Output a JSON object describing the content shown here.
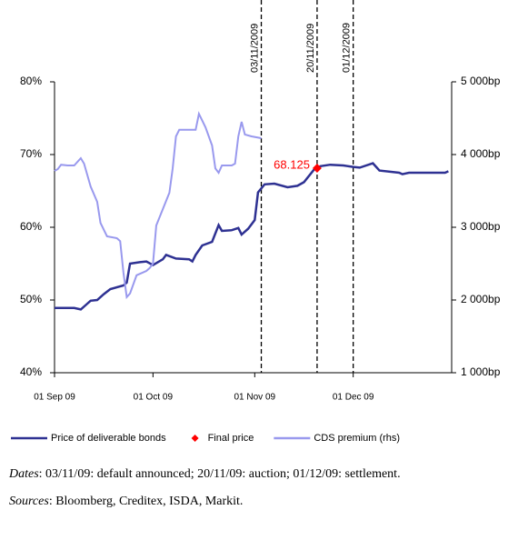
{
  "chart_data": {
    "type": "line",
    "xlim": [
      "2009-09-01",
      "2009-12-31"
    ],
    "xticks": [
      {
        "value": "2009-09-01",
        "label": "01 Sep 09"
      },
      {
        "value": "2009-10-01",
        "label": "01 Oct 09"
      },
      {
        "value": "2009-11-01",
        "label": "01 Nov 09"
      },
      {
        "value": "2009-12-01",
        "label": "01 Dec 09"
      }
    ],
    "ylim": [
      40,
      80
    ],
    "yticks": [
      {
        "value": 40,
        "label": "40%"
      },
      {
        "value": 50,
        "label": "50%"
      },
      {
        "value": 60,
        "label": "60%"
      },
      {
        "value": 70,
        "label": "70%"
      },
      {
        "value": 80,
        "label": "80%"
      }
    ],
    "y2lim": [
      1000,
      5000
    ],
    "y2ticks": [
      {
        "value": 1000,
        "label": "1 000bp"
      },
      {
        "value": 2000,
        "label": "2 000bp"
      },
      {
        "value": 3000,
        "label": "3 000bp"
      },
      {
        "value": 4000,
        "label": "4 000bp"
      },
      {
        "value": 5000,
        "label": "5 000bp"
      }
    ],
    "series": [
      {
        "name": "Price of deliverable bonds",
        "color": "#2e3192",
        "style": "line",
        "x": [
          "2009-09-01",
          "2009-09-07",
          "2009-09-09",
          "2009-09-11",
          "2009-09-12",
          "2009-09-14",
          "2009-09-16",
          "2009-09-18",
          "2009-09-22",
          "2009-09-23",
          "2009-09-24",
          "2009-09-27",
          "2009-09-29",
          "2009-10-01",
          "2009-10-04",
          "2009-10-05",
          "2009-10-08",
          "2009-10-12",
          "2009-10-13",
          "2009-10-14",
          "2009-10-16",
          "2009-10-19",
          "2009-10-21",
          "2009-10-22",
          "2009-10-25",
          "2009-10-27",
          "2009-10-28",
          "2009-10-30",
          "2009-11-01",
          "2009-11-02",
          "2009-11-04",
          "2009-11-07",
          "2009-11-11",
          "2009-11-14",
          "2009-11-16",
          "2009-11-19",
          "2009-11-21",
          "2009-11-24",
          "2009-11-28",
          "2009-12-01",
          "2009-12-03",
          "2009-12-07",
          "2009-12-09",
          "2009-12-15",
          "2009-12-16",
          "2009-12-18",
          "2009-12-29",
          "2009-12-30"
        ],
        "values": [
          48.9,
          48.9,
          48.7,
          49.5,
          49.9,
          50.0,
          50.8,
          51.5,
          52.0,
          52.4,
          55.0,
          55.2,
          55.3,
          54.8,
          55.6,
          56.2,
          55.7,
          55.6,
          55.3,
          56.2,
          57.5,
          58.0,
          60.3,
          59.5,
          59.6,
          59.9,
          59.0,
          59.8,
          61.0,
          64.8,
          65.9,
          66.0,
          65.5,
          65.7,
          66.2,
          67.9,
          68.4,
          68.6,
          68.5,
          68.3,
          68.2,
          68.8,
          67.8,
          67.5,
          67.3,
          67.5,
          67.5,
          67.7
        ]
      },
      {
        "name": "Final price",
        "color": "#ff0000",
        "style": "marker",
        "x": [
          "2009-11-20"
        ],
        "values": [
          68.125
        ]
      },
      {
        "name": "CDS premium (rhs)",
        "color": "#9999ee",
        "style": "line",
        "axis": "y2",
        "x": [
          "2009-09-01",
          "2009-09-02",
          "2009-09-03",
          "2009-09-05",
          "2009-09-07",
          "2009-09-09",
          "2009-09-10",
          "2009-09-12",
          "2009-09-14",
          "2009-09-15",
          "2009-09-17",
          "2009-09-20",
          "2009-09-21",
          "2009-09-22",
          "2009-09-23",
          "2009-09-24",
          "2009-09-26",
          "2009-09-29",
          "2009-09-30",
          "2009-10-01",
          "2009-10-02",
          "2009-10-04",
          "2009-10-06",
          "2009-10-07",
          "2009-10-08",
          "2009-10-09",
          "2009-10-14",
          "2009-10-15",
          "2009-10-17",
          "2009-10-19",
          "2009-10-20",
          "2009-10-21",
          "2009-10-22",
          "2009-10-25",
          "2009-10-26",
          "2009-10-27",
          "2009-10-28",
          "2009-10-29",
          "2009-10-31",
          "2009-11-03"
        ],
        "values": [
          3775,
          3800,
          3860,
          3850,
          3850,
          3950,
          3875,
          3560,
          3350,
          3060,
          2875,
          2850,
          2810,
          2375,
          2040,
          2090,
          2340,
          2400,
          2440,
          2500,
          3025,
          3250,
          3475,
          3810,
          4250,
          4340,
          4340,
          4560,
          4375,
          4125,
          3810,
          3750,
          3850,
          3850,
          3875,
          4250,
          4450,
          4275,
          4250,
          4225
        ]
      }
    ],
    "vlines": [
      {
        "x": "2009-11-03",
        "label": "03/11/2009"
      },
      {
        "x": "2009-11-20",
        "label": "20/11/2009"
      },
      {
        "x": "2009-12-01",
        "label": "01/12/2009"
      }
    ],
    "legend": "bottom"
  },
  "notes": [
    {
      "label": "Dates",
      "text": ": 03/11/09: default announced; 20/11/09: auction; 01/12/09: settlement."
    },
    {
      "label": "Sources",
      "text": ": Bloomberg, Creditex, ISDA, Markit."
    }
  ]
}
